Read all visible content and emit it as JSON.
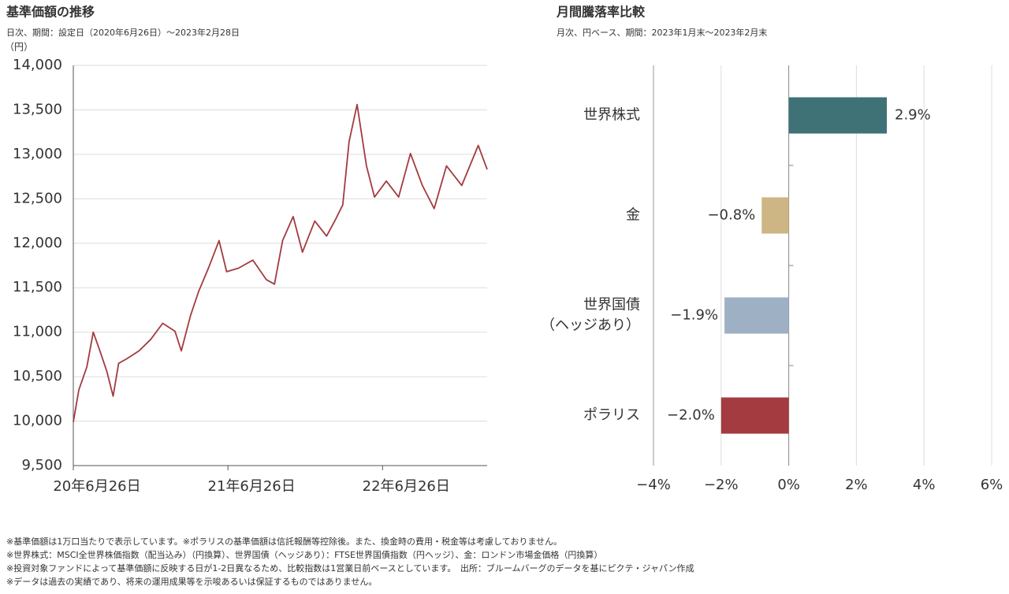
{
  "chart_data": [
    {
      "type": "line",
      "title": "基準価額の推移",
      "subtitle": "日次、期間：設定日（2020年6月26日）～2023年2月28日",
      "ylabel": "（円）",
      "x": [
        "2020-06-26",
        "2020-07-09",
        "2020-07-28",
        "2020-08-12",
        "2020-08-25",
        "2020-09-13",
        "2020-09-28",
        "2020-10-11",
        "2020-10-30",
        "2020-11-28",
        "2020-12-26",
        "2021-01-23",
        "2021-02-21",
        "2021-03-08",
        "2021-03-30",
        "2021-04-18",
        "2021-05-11",
        "2021-06-05",
        "2021-06-23",
        "2021-07-21",
        "2021-08-24",
        "2021-09-25",
        "2021-10-14",
        "2021-11-02",
        "2021-11-27",
        "2021-12-19",
        "2022-01-17",
        "2022-02-14",
        "2022-03-05",
        "2022-03-24",
        "2022-04-08",
        "2022-04-27",
        "2022-05-19",
        "2022-06-07",
        "2022-07-05",
        "2022-08-03",
        "2022-08-31",
        "2022-09-28",
        "2022-10-26",
        "2022-11-24",
        "2022-12-30",
        "2023-02-07",
        "2023-02-28"
      ],
      "values": [
        9990,
        10350,
        10610,
        11000,
        10830,
        10560,
        10280,
        10650,
        10700,
        10790,
        10920,
        11100,
        11010,
        10790,
        11190,
        11460,
        11720,
        12030,
        11680,
        11720,
        11810,
        11590,
        11540,
        12030,
        12300,
        11900,
        12250,
        12080,
        12250,
        12430,
        13140,
        13560,
        12870,
        12520,
        12700,
        12520,
        13010,
        12650,
        12390,
        12870,
        12650,
        13100,
        12830
      ],
      "color": "#a33b40",
      "xlim": [
        "2020-06-26",
        "2023-02-28"
      ],
      "xticks": [
        {
          "value": "2020-06-26",
          "label": "20年6月26日"
        },
        {
          "value": "2021-06-26",
          "label": "21年6月26日"
        },
        {
          "value": "2022-06-26",
          "label": "22年6月26日"
        }
      ],
      "ylim": [
        9500,
        14000
      ],
      "yticks": [
        {
          "value": 9500,
          "label": "9,500"
        },
        {
          "value": 10000,
          "label": "10,000"
        },
        {
          "value": 10500,
          "label": "10,500"
        },
        {
          "value": 11000,
          "label": "11,000"
        },
        {
          "value": 11500,
          "label": "11,500"
        },
        {
          "value": 12000,
          "label": "12,000"
        },
        {
          "value": 12500,
          "label": "12,500"
        },
        {
          "value": 13000,
          "label": "13,000"
        },
        {
          "value": 13500,
          "label": "13,500"
        },
        {
          "value": 14000,
          "label": "14,000"
        }
      ],
      "grid": true
    },
    {
      "type": "hbar",
      "title": "月間騰落率比較",
      "subtitle": "月次、円ベース、期間：2023年1月末～2023年2月末",
      "categories": [
        "世界株式",
        "金",
        "世界国債\n（ヘッジあり）",
        "ポラリス"
      ],
      "values": [
        2.9,
        -0.8,
        -1.9,
        -2.0
      ],
      "value_labels": [
        "2.9%",
        "−0.8%",
        "−1.9%",
        "−2.0%"
      ],
      "colors": [
        "#3e7277",
        "#cdb584",
        "#9eb0c4",
        "#a33b40"
      ],
      "xlim": [
        -4,
        6
      ],
      "xticks": [
        {
          "value": -4,
          "label": "−4%"
        },
        {
          "value": -2,
          "label": "−2%"
        },
        {
          "value": 0,
          "label": "0%"
        },
        {
          "value": 2,
          "label": "2%"
        },
        {
          "value": 4,
          "label": "4%"
        },
        {
          "value": 6,
          "label": "6%"
        }
      ],
      "grid": true
    }
  ],
  "footnotes": [
    "※基準価額は1万口当たりで表示しています。※ポラリスの基準価額は信託報酬等控除後。また、換金時の費用・税金等は考慮しておりません。",
    "※世界株式：MSCI全世界株価指数（配当込み）（円換算）、世界国債（ヘッジあり）：FTSE世界国債指数（円ヘッジ）、金：ロンドン市場金価格（円換算）",
    "※投資対象ファンドによって基準価額に反映する日が1-2日異なるため、比較指数は1営業日前ベースとしています。　出所：ブルームバーグのデータを基にピクテ・ジャパン作成",
    "※データは過去の実績であり、将来の運用成果等を示唆あるいは保証するものではありません。"
  ]
}
